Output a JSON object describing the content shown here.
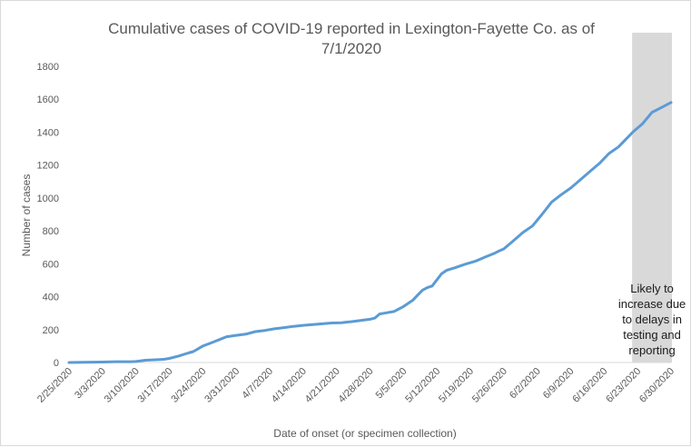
{
  "chart_data": {
    "type": "line",
    "title_line1": "Cumulative cases of COVID-19 reported in Lexington-Fayette Co.  as of",
    "title_line2": "7/1/2020",
    "xlabel": "Date of onset (or specimen collection)",
    "ylabel": "Number of cases",
    "ylim": [
      0,
      1800
    ],
    "yticks": [
      0,
      200,
      400,
      600,
      800,
      1000,
      1200,
      1400,
      1600,
      1800
    ],
    "xlim": [
      "2/25/2020",
      "6/30/2020"
    ],
    "xticks": [
      "2/25/2020",
      "3/3/2020",
      "3/10/2020",
      "3/17/2020",
      "3/24/2020",
      "3/31/2020",
      "4/7/2020",
      "4/14/2020",
      "4/21/2020",
      "4/28/2020",
      "5/5/2020",
      "5/12/2020",
      "5/19/2020",
      "5/26/2020",
      "6/2/2020",
      "6/9/2020",
      "6/16/2020",
      "6/23/2020",
      "6/30/2020"
    ],
    "grid": false,
    "line_color": "#5b9bd5",
    "shaded_region": {
      "start": "6/23/2020",
      "end": "6/30/2020",
      "color": "#d9d9d9",
      "annotation": [
        "Likely to",
        "increase due",
        "to delays in",
        "testing and",
        "reporting"
      ]
    },
    "series": [
      {
        "x": [
          "2/25/2020",
          "2/28/2020",
          "3/3/2020",
          "3/6/2020",
          "3/9/2020",
          "3/10/2020",
          "3/12/2020",
          "3/13/2020",
          "3/15/2020",
          "3/16/2020",
          "3/17/2020",
          "3/19/2020",
          "3/21/2020",
          "3/22/2020",
          "3/24/2020",
          "3/26/2020",
          "3/28/2020",
          "3/29/2020",
          "3/31/2020",
          "4/2/2020",
          "4/4/2020",
          "4/6/2020",
          "4/8/2020",
          "4/10/2020",
          "4/12/2020",
          "4/14/2020",
          "4/16/2020",
          "4/18/2020",
          "4/20/2020",
          "4/22/2020",
          "4/24/2020",
          "4/26/2020",
          "4/28/2020",
          "4/29/2020",
          "4/30/2020",
          "5/1/2020",
          "5/3/2020",
          "5/5/2020",
          "5/7/2020",
          "5/8/2020",
          "5/9/2020",
          "5/10/2020",
          "5/11/2020",
          "5/13/2020",
          "5/14/2020",
          "5/16/2020",
          "5/18/2020",
          "5/20/2020",
          "5/22/2020",
          "5/24/2020",
          "5/25/2020",
          "5/26/2020",
          "5/28/2020",
          "5/30/2020",
          "6/1/2020",
          "6/3/2020",
          "6/5/2020",
          "6/7/2020",
          "6/9/2020",
          "6/11/2020",
          "6/13/2020",
          "6/15/2020",
          "6/17/2020",
          "6/19/2020",
          "6/21/2020",
          "6/22/2020",
          "6/24/2020",
          "6/26/2020",
          "6/28/2020",
          "6/30/2020"
        ],
        "y": [
          0,
          1,
          3,
          5,
          5,
          6,
          14,
          15,
          18,
          20,
          25,
          40,
          58,
          66,
          100,
          122,
          145,
          157,
          165,
          172,
          188,
          195,
          205,
          212,
          220,
          226,
          230,
          235,
          240,
          242,
          248,
          255,
          263,
          270,
          295,
          300,
          310,
          340,
          380,
          410,
          440,
          455,
          465,
          540,
          560,
          578,
          598,
          615,
          640,
          663,
          678,
          690,
          740,
          790,
          830,
          900,
          975,
          1020,
          1060,
          1110,
          1160,
          1210,
          1270,
          1310,
          1370,
          1400,
          1450,
          1520,
          1550,
          1580
        ]
      }
    ]
  }
}
